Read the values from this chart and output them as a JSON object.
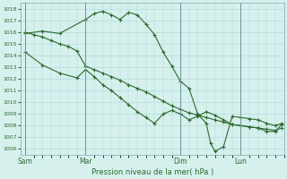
{
  "bg_color": "#d6f0ee",
  "grid_color": "#aad8d4",
  "line_color": "#2d6a2d",
  "xlabel": "Pression niveau de la mer( hPa )",
  "ylim": [
    1005.5,
    1018.5
  ],
  "yticks": [
    1006,
    1007,
    1008,
    1009,
    1010,
    1011,
    1012,
    1013,
    1014,
    1015,
    1016,
    1017,
    1018
  ],
  "day_labels": [
    "Sam",
    "Mar",
    "Dim",
    "Lun"
  ],
  "day_positions": [
    0,
    28,
    72,
    100
  ],
  "xlim": [
    -2,
    120
  ],
  "vline_positions": [
    0,
    28,
    72,
    100
  ],
  "series1_x": [
    0,
    4,
    8,
    12,
    16,
    20,
    24,
    28,
    32,
    36,
    40,
    44,
    48,
    52,
    56,
    60,
    64,
    68,
    72,
    76,
    80,
    84,
    88,
    92,
    96,
    100,
    104,
    108,
    112,
    116,
    119
  ],
  "series1_y": [
    1016.0,
    1015.8,
    1015.6,
    1015.3,
    1015.0,
    1014.8,
    1014.4,
    1013.1,
    1012.8,
    1012.5,
    1012.2,
    1011.9,
    1011.5,
    1011.2,
    1010.9,
    1010.5,
    1010.1,
    1009.7,
    1009.4,
    1009.1,
    1008.9,
    1008.7,
    1008.5,
    1008.3,
    1008.1,
    1008.0,
    1007.9,
    1007.8,
    1007.7,
    1007.6,
    1007.8
  ],
  "series2_x": [
    0,
    8,
    16,
    24,
    28,
    32,
    36,
    40,
    44,
    48,
    52,
    56,
    60,
    64,
    68,
    72,
    76,
    80,
    84,
    88,
    92,
    96,
    100,
    104,
    108,
    112,
    116,
    119
  ],
  "series2_y": [
    1014.3,
    1013.2,
    1012.5,
    1012.1,
    1012.8,
    1012.2,
    1011.5,
    1011.0,
    1010.4,
    1009.8,
    1009.2,
    1008.7,
    1008.2,
    1009.0,
    1009.3,
    1009.0,
    1008.5,
    1008.8,
    1009.2,
    1008.9,
    1008.5,
    1008.1,
    1008.0,
    1007.9,
    1007.8,
    1007.5,
    1007.5,
    1008.1
  ],
  "series3_x": [
    0,
    8,
    16,
    28,
    32,
    36,
    40,
    44,
    48,
    52,
    56,
    60,
    64,
    68,
    72,
    76,
    80,
    84,
    86,
    88,
    92,
    96,
    100,
    104,
    108,
    112,
    116,
    119
  ],
  "series3_y": [
    1015.9,
    1016.1,
    1015.9,
    1017.1,
    1017.6,
    1017.8,
    1017.5,
    1017.1,
    1017.7,
    1017.5,
    1016.7,
    1015.8,
    1014.3,
    1013.1,
    1011.8,
    1011.2,
    1009.0,
    1008.2,
    1006.5,
    1005.8,
    1006.2,
    1008.8,
    1008.7,
    1008.6,
    1008.5,
    1008.2,
    1008.0,
    1008.2
  ]
}
